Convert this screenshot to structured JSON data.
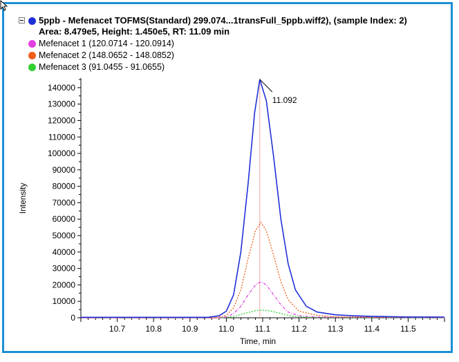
{
  "header": {
    "title": "5ppb - Mefenacet TOFMS(Standard) 299.074...1transFull_5ppb.wiff2), (sample Index: 2)",
    "subtitle": "Area: 8.479e5, Height: 1.450e5, RT: 11.09 min",
    "dot_color": "#1f2fd8"
  },
  "legend": [
    {
      "label": "Mefenacet 1 (120.0714 - 120.0914)",
      "color": "#e040e0"
    },
    {
      "label": "Mefenacet 2 (148.0652 - 148.0852)",
      "color": "#f0601a"
    },
    {
      "label": "Mefenacet 3 (91.0455 - 91.0655)",
      "color": "#30d030"
    }
  ],
  "chart_data": {
    "type": "line",
    "title": "5ppb - Mefenacet TOFMS(Standard) 299.074...1transFull_5ppb.wiff2), (sample Index: 2)",
    "subtitle": "Area: 8.479e5, Height: 1.450e5, RT: 11.09 min",
    "xlabel": "Time, min",
    "ylabel": "Intensity",
    "xlim": [
      10.6,
      11.6
    ],
    "ylim": [
      0,
      145000
    ],
    "xticks": [
      10.7,
      10.8,
      10.9,
      11.0,
      11.1,
      11.2,
      11.3,
      11.4,
      11.5
    ],
    "xtick_labels": [
      "10.7",
      "10.8",
      "10.9",
      "11.0",
      "11.1",
      "11.2",
      "11.3",
      "11.4",
      "11.5"
    ],
    "yticks": [
      0,
      10000,
      20000,
      30000,
      40000,
      50000,
      60000,
      70000,
      80000,
      90000,
      100000,
      110000,
      120000,
      130000,
      140000
    ],
    "ytick_labels": [
      "0",
      "10000",
      "20000",
      "30000",
      "40000",
      "50000",
      "60000",
      "70000",
      "80000",
      "90000",
      "100000",
      "110000",
      "120000",
      "130000",
      "140000"
    ],
    "grid": false,
    "legend_position": "top-left",
    "rt_marker": {
      "x": 11.092,
      "label": "11.092"
    },
    "series": [
      {
        "name": "5ppb - Mefenacet TOFMS(Standard)",
        "color": "#1f2fd8",
        "style": "solid",
        "x": [
          10.6,
          10.95,
          10.98,
          11.0,
          11.02,
          11.04,
          11.06,
          11.078,
          11.092,
          11.11,
          11.13,
          11.15,
          11.17,
          11.19,
          11.22,
          11.25,
          11.3,
          11.35,
          11.4,
          11.5,
          11.6
        ],
        "y": [
          300,
          300,
          1200,
          4000,
          14000,
          40000,
          82000,
          125000,
          145000,
          132000,
          98000,
          60000,
          33000,
          17000,
          7000,
          3500,
          1800,
          1200,
          900,
          500,
          400
        ]
      },
      {
        "name": "Mefenacet 2 (148.0652 - 148.0852)",
        "color": "#f0601a",
        "style": "dotted",
        "x": [
          10.6,
          10.97,
          11.0,
          11.02,
          11.04,
          11.06,
          11.08,
          11.095,
          11.11,
          11.13,
          11.15,
          11.17,
          11.2,
          11.25,
          11.3,
          11.6
        ],
        "y": [
          0,
          0,
          1500,
          6000,
          17000,
          36000,
          53000,
          58000,
          53000,
          38000,
          22000,
          11000,
          4000,
          1500,
          600,
          200
        ]
      },
      {
        "name": "Mefenacet 1 (120.0714 - 120.0914)",
        "color": "#e040e0",
        "style": "dashdot",
        "x": [
          10.6,
          10.98,
          11.0,
          11.02,
          11.04,
          11.06,
          11.08,
          11.095,
          11.11,
          11.13,
          11.15,
          11.17,
          11.2,
          11.25,
          11.6
        ],
        "y": [
          0,
          0,
          600,
          2500,
          7000,
          14000,
          20000,
          22000,
          20000,
          14000,
          8000,
          3500,
          1200,
          400,
          100
        ]
      },
      {
        "name": "Mefenacet 3 (91.0455 - 91.0655)",
        "color": "#30d030",
        "style": "dotted",
        "x": [
          10.6,
          10.99,
          11.02,
          11.05,
          11.08,
          11.1,
          11.12,
          11.15,
          11.18,
          11.22,
          11.6
        ],
        "y": [
          0,
          0,
          800,
          2600,
          4300,
          4700,
          4200,
          2600,
          1000,
          300,
          0
        ]
      }
    ]
  }
}
